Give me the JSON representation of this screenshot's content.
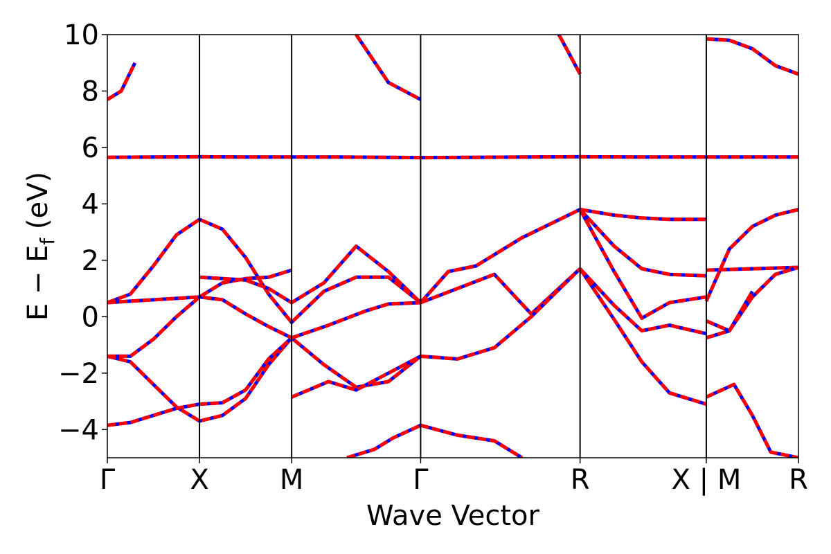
{
  "chart_data": {
    "type": "line",
    "xlabel": "Wave Vector",
    "ylabel": "E − E",
    "ylabel_subscript": "f",
    "ylabel_unit": " (eV)",
    "ylim": [
      -5,
      10
    ],
    "yticks": [
      -4,
      -2,
      0,
      2,
      4,
      6,
      8,
      10
    ],
    "ytick_labels": [
      "−4",
      "−2",
      "0",
      "2",
      "4",
      "6",
      "8",
      "10"
    ],
    "xlim": [
      0,
      7.5
    ],
    "kpath": [
      {
        "label": "Γ",
        "x": 0
      },
      {
        "label": "X",
        "x": 1
      },
      {
        "label": "M",
        "x": 2
      },
      {
        "label": "Γ",
        "x": 3.4
      },
      {
        "label": "R",
        "x": 5.13
      },
      {
        "label": "X | M",
        "x": 6.5
      },
      {
        "label": "R",
        "x": 7.5
      }
    ],
    "colors": {
      "dft": "#0000ff",
      "fit": "#ff0000",
      "axis": "#000000"
    },
    "grid": false,
    "series": [
      {
        "x": [
          0,
          0.25,
          0.5,
          0.75,
          1,
          1.25,
          1.5,
          1.75,
          2,
          2.35,
          2.7,
          3.05,
          3.4
        ],
        "values": [
          -1.4,
          -1.6,
          -2.4,
          -3.2,
          -3.7,
          -3.5,
          -2.9,
          -1.7,
          -0.75,
          -1.7,
          -2.5,
          -2.3,
          -1.4
        ]
      },
      {
        "x": [
          0,
          0.25,
          0.5,
          0.75,
          1,
          1.25,
          1.5,
          1.75,
          2
        ],
        "values": [
          -1.4,
          -1.4,
          -0.8,
          0.0,
          0.7,
          0.6,
          0.1,
          -0.35,
          -0.75
        ]
      },
      {
        "x": [
          0,
          0.25,
          0.5,
          0.75,
          1,
          1.25,
          1.5,
          1.75,
          2,
          2.35,
          2.7,
          3.05,
          3.4
        ],
        "values": [
          0.5,
          0.8,
          1.8,
          2.9,
          3.45,
          3.1,
          2.1,
          0.8,
          -0.2,
          0.9,
          1.4,
          1.4,
          0.5
        ]
      },
      {
        "x": [
          0,
          0.25,
          0.5,
          0.75,
          1,
          1.25,
          1.5,
          1.75,
          2
        ],
        "values": [
          0.5,
          0.55,
          0.6,
          0.65,
          0.7,
          1.2,
          1.35,
          1.4,
          1.65
        ]
      },
      {
        "x": [
          0,
          0.25,
          0.5,
          0.75,
          1,
          1.25,
          1.5,
          1.75,
          2
        ],
        "values": [
          -3.85,
          -3.75,
          -3.5,
          -3.25,
          -3.1,
          -3.05,
          -2.6,
          -1.5,
          -0.75
        ]
      },
      {
        "x": [
          0,
          0.15,
          0.3
        ],
        "values": [
          7.7,
          8.0,
          9.0
        ]
      },
      {
        "x": [
          0,
          0.5,
          1,
          1.5,
          2,
          2.5,
          3,
          3.4,
          4,
          4.5,
          5.13,
          5.8,
          6.5,
          7,
          7.5
        ],
        "values": [
          5.65,
          5.66,
          5.67,
          5.66,
          5.66,
          5.66,
          5.65,
          5.64,
          5.65,
          5.66,
          5.67,
          5.66,
          5.66,
          5.66,
          5.66
        ]
      },
      {
        "x": [
          1,
          1.25,
          1.5,
          1.75,
          2,
          2.35,
          2.7,
          3.05,
          3.4
        ],
        "values": [
          1.4,
          1.35,
          1.3,
          1.0,
          0.5,
          1.2,
          2.5,
          1.6,
          0.5
        ]
      },
      {
        "x": [
          2,
          2.4,
          2.7,
          3.05,
          3.4
        ],
        "values": [
          -2.85,
          -2.3,
          -2.6,
          -2.0,
          -1.4
        ]
      },
      {
        "x": [
          2,
          2.4,
          2.8,
          3.05,
          3.4
        ],
        "values": [
          -0.75,
          -0.3,
          0.2,
          0.45,
          0.5
        ]
      },
      {
        "x": [
          2.6,
          2.9,
          3.1,
          3.4
        ],
        "values": [
          -5.0,
          -4.7,
          -4.3,
          -3.85
        ]
      },
      {
        "x": [
          2.7,
          3.05,
          3.4
        ],
        "values": [
          10.0,
          8.3,
          7.7
        ]
      },
      {
        "x": [
          3.4,
          3.7,
          4.0,
          4.5,
          5.13
        ],
        "values": [
          0.5,
          1.6,
          1.8,
          2.8,
          3.8
        ]
      },
      {
        "x": [
          3.4,
          3.8,
          4.2,
          4.6,
          5.13
        ],
        "values": [
          0.5,
          1.0,
          1.5,
          0.1,
          1.7
        ]
      },
      {
        "x": [
          3.4,
          3.8,
          4.2,
          4.6,
          5.13
        ],
        "values": [
          -1.4,
          -1.5,
          -1.1,
          0.0,
          1.7
        ]
      },
      {
        "x": [
          3.4,
          3.8,
          4.2,
          4.5
        ],
        "values": [
          -3.85,
          -4.2,
          -4.4,
          -5.0
        ]
      },
      {
        "x": [
          5.13,
          5.5,
          5.8,
          6.1,
          6.5
        ],
        "values": [
          3.8,
          3.6,
          3.5,
          3.45,
          3.45
        ]
      },
      {
        "x": [
          5.13,
          5.5,
          5.8,
          6.1,
          6.5
        ],
        "values": [
          3.8,
          2.5,
          1.7,
          1.5,
          1.45
        ]
      },
      {
        "x": [
          5.13,
          5.5,
          5.8,
          6.1,
          6.5
        ],
        "values": [
          3.8,
          1.6,
          -0.05,
          0.5,
          0.7
        ]
      },
      {
        "x": [
          5.13,
          5.5,
          5.8,
          6.1,
          6.5
        ],
        "values": [
          1.7,
          0.4,
          -0.5,
          -0.3,
          -0.6
        ]
      },
      {
        "x": [
          5.13,
          5.5,
          5.8,
          6.1,
          6.5
        ],
        "values": [
          1.7,
          -0.1,
          -1.6,
          -2.7,
          -3.1
        ]
      },
      {
        "x": [
          5.13,
          5.0,
          4.9
        ],
        "values": [
          8.6,
          9.4,
          10.0
        ]
      },
      {
        "x": [
          6.5,
          6.75,
          7.0,
          7.25,
          7.5
        ],
        "values": [
          9.85,
          9.8,
          9.5,
          8.9,
          8.6
        ]
      },
      {
        "x": [
          6.5,
          6.75,
          7.0,
          7.25,
          7.5
        ],
        "values": [
          0.55,
          2.4,
          3.2,
          3.6,
          3.8
        ]
      },
      {
        "x": [
          6.5,
          7.5
        ],
        "values": [
          1.65,
          1.75
        ]
      },
      {
        "x": [
          6.5,
          6.75,
          7.0,
          7.25,
          7.5
        ],
        "values": [
          -0.15,
          -0.5,
          0.7,
          1.5,
          1.75
        ]
      },
      {
        "x": [
          6.5,
          6.75,
          7.0
        ],
        "values": [
          -0.75,
          -0.5,
          0.9
        ]
      },
      {
        "x": [
          6.5,
          6.8,
          7.0,
          7.2,
          7.5
        ],
        "values": [
          -2.85,
          -2.4,
          -3.5,
          -4.8,
          -5.0
        ]
      }
    ]
  }
}
